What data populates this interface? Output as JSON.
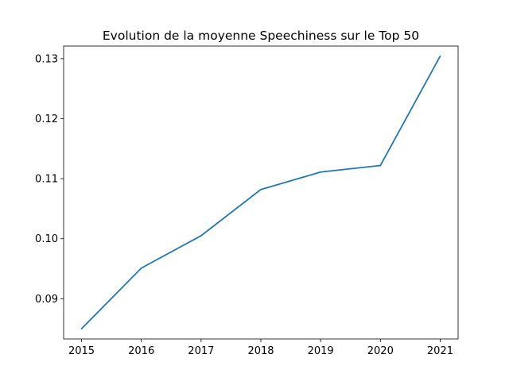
{
  "chart_data": {
    "type": "line",
    "title": "Evolution de la moyenne Speechiness sur le Top 50",
    "xlabel": "",
    "ylabel": "",
    "x": [
      2015,
      2016,
      2017,
      2018,
      2019,
      2020,
      2021
    ],
    "series": [
      {
        "values": [
          0.085,
          0.0951,
          0.1005,
          0.1082,
          0.1111,
          0.1122,
          0.1304
        ],
        "color": "#1f77b4"
      }
    ],
    "xticks": [
      "2015",
      "2016",
      "2017",
      "2018",
      "2019",
      "2020",
      "2021"
    ],
    "yticks": [
      "0.09",
      "0.10",
      "0.11",
      "0.12",
      "0.13"
    ],
    "ytick_values": [
      0.09,
      0.1,
      0.11,
      0.12,
      0.13
    ],
    "xlim": [
      2014.7,
      2021.3
    ],
    "ylim": [
      0.0833,
      0.1321
    ],
    "grid": false,
    "legend": "none"
  }
}
